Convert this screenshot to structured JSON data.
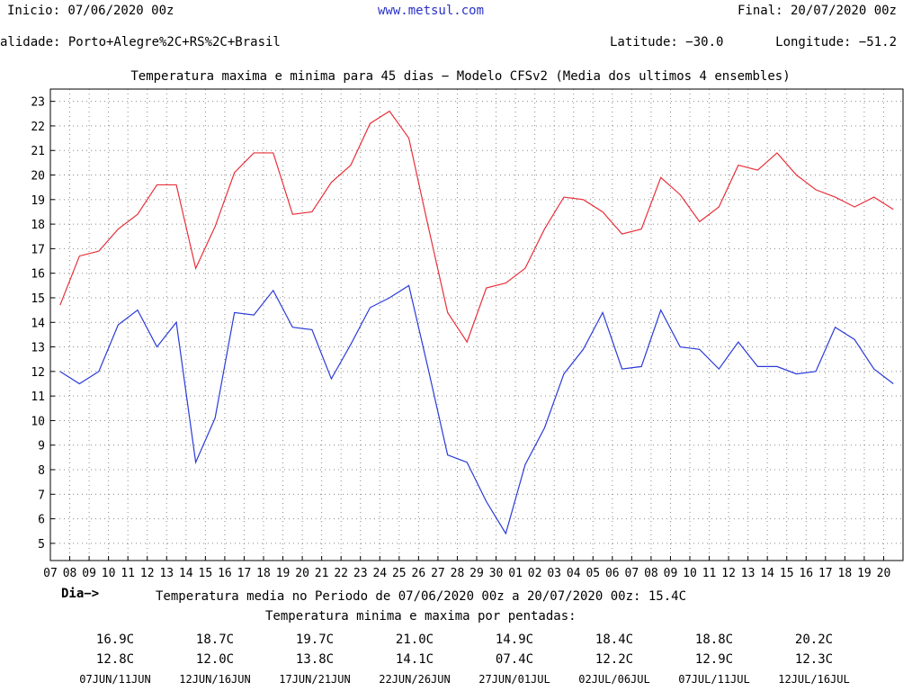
{
  "header": {
    "start": "Inicio: 07/06/2020 00z",
    "site": "www.metsul.com",
    "end": "Final: 20/07/2020 00z",
    "locality": "alidade: Porto+Alegre%2C+RS%2C+Brasil",
    "latitude": "Latitude: −30.0",
    "longitude": "Longitude: −51.2"
  },
  "chart_data": {
    "type": "line",
    "title": "Temperatura maxima e minima para 45 dias − Modelo CFSv2 (Media dos ultimos 4 ensembles)",
    "xlabel": "Dia−>",
    "x_ticks": [
      "07",
      "08",
      "09",
      "10",
      "11",
      "12",
      "13",
      "14",
      "15",
      "16",
      "17",
      "18",
      "19",
      "20",
      "21",
      "22",
      "23",
      "24",
      "25",
      "26",
      "27",
      "28",
      "29",
      "30",
      "01",
      "02",
      "03",
      "04",
      "05",
      "06",
      "07",
      "08",
      "09",
      "10",
      "11",
      "12",
      "13",
      "14",
      "15",
      "16",
      "17",
      "18",
      "19",
      "20"
    ],
    "ylim": [
      4.3,
      23.5
    ],
    "y_ticks": [
      5,
      6,
      7,
      8,
      9,
      10,
      11,
      12,
      13,
      14,
      15,
      16,
      17,
      18,
      19,
      20,
      21,
      22,
      23
    ],
    "grid": true,
    "series": [
      {
        "color": "#e8303a",
        "x": [
          7.5,
          8.5,
          9.5,
          10.5,
          11.5,
          12.5,
          13.5,
          14.5,
          15.5,
          16.5,
          17.5,
          18.5,
          19.5,
          20.5,
          21.5,
          22.5,
          23.5,
          24.5,
          25.5,
          26.5,
          27.5,
          28.5,
          29.5,
          30.5,
          31.5,
          32.5,
          33.5,
          34.5,
          35.5,
          36.5,
          37.5,
          38.5,
          39.5,
          40.5,
          41.5,
          42.5,
          43.5,
          44.5,
          45.5,
          46.5,
          47.5,
          48.5,
          49.5,
          50.5
        ],
        "values": [
          14.7,
          16.7,
          16.9,
          17.8,
          18.4,
          19.6,
          19.6,
          16.2,
          17.9,
          20.1,
          20.9,
          20.9,
          18.4,
          18.5,
          19.7,
          20.4,
          22.1,
          22.6,
          21.5,
          17.9,
          14.4,
          13.2,
          15.4,
          15.6,
          16.2,
          17.8,
          19.1,
          19.0,
          18.5,
          17.6,
          17.8,
          19.9,
          19.2,
          18.1,
          18.7,
          20.4,
          20.2,
          20.9,
          20.0,
          19.4,
          19.1,
          18.7,
          19.1,
          18.6
        ]
      },
      {
        "color": "#2a3ad8",
        "x": [
          7.5,
          8.5,
          9.5,
          10.5,
          11.5,
          12.5,
          13.5,
          14.5,
          15.5,
          16.5,
          17.5,
          18.5,
          19.5,
          20.5,
          21.5,
          22.5,
          23.5,
          24.5,
          25.5,
          26.5,
          27.5,
          28.5,
          29.5,
          30.5,
          31.5,
          32.5,
          33.5,
          34.5,
          35.5,
          36.5,
          37.5,
          38.5,
          39.5,
          40.5,
          41.5,
          42.5,
          43.5,
          44.5,
          45.5,
          46.5,
          47.5,
          48.5,
          49.5,
          50.5
        ],
        "values": [
          12.0,
          11.5,
          12.0,
          13.9,
          14.5,
          13.0,
          14.0,
          8.3,
          10.1,
          14.4,
          14.3,
          15.3,
          13.8,
          13.7,
          11.7,
          13.1,
          14.6,
          15.0,
          15.5,
          12.1,
          8.6,
          8.3,
          6.7,
          5.4,
          8.2,
          9.7,
          11.9,
          12.9,
          14.4,
          12.1,
          12.2,
          14.5,
          13.0,
          12.9,
          12.1,
          13.2,
          12.2,
          12.2,
          11.9,
          12.0,
          13.8,
          13.3,
          12.1,
          11.5
        ]
      }
    ]
  },
  "footer": {
    "mean_text": "Temperatura media no Periodo de 07/06/2020 00z a 20/07/2020 00z: 15.4C",
    "pentads_title": "Temperatura minima e maxima por pentadas:",
    "pentads": [
      {
        "max": "16.9C",
        "min": "12.8C",
        "label": "07JUN/11JUN"
      },
      {
        "max": "18.7C",
        "min": "12.0C",
        "label": "12JUN/16JUN"
      },
      {
        "max": "19.7C",
        "min": "13.8C",
        "label": "17JUN/21JUN"
      },
      {
        "max": "21.0C",
        "min": "14.1C",
        "label": "22JUN/26JUN"
      },
      {
        "max": "14.9C",
        "min": "07.4C",
        "label": "27JUN/01JUL"
      },
      {
        "max": "18.4C",
        "min": "12.2C",
        "label": "02JUL/06JUL"
      },
      {
        "max": "18.8C",
        "min": "12.9C",
        "label": "07JUL/11JUL"
      },
      {
        "max": "20.2C",
        "min": "12.3C",
        "label": "12JUL/16JUL"
      }
    ]
  }
}
